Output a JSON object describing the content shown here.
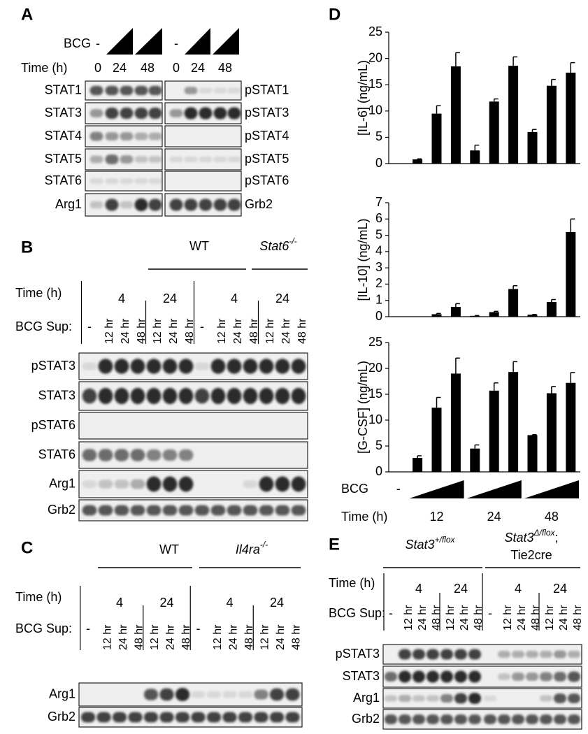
{
  "panel_a": {
    "letter": "A",
    "bcg_label": "BCG",
    "bcg_control": [
      "-",
      "-"
    ],
    "time_label": "Time (h)",
    "times": [
      "0",
      "24",
      "48",
      "0",
      "24",
      "48"
    ],
    "left_blots": [
      "STAT1",
      "STAT3",
      "STAT4",
      "STAT5",
      "STAT6",
      "Arg1"
    ],
    "right_blots": [
      "pSTAT1",
      "pSTAT3",
      "pSTAT4",
      "pSTAT5",
      "pSTAT6",
      "Grb2"
    ]
  },
  "panel_b": {
    "letter": "B",
    "groups": [
      {
        "name": "WT"
      },
      {
        "name": "Stat6",
        "sup": "-/-"
      }
    ],
    "time_label": "Time (h)",
    "times": [
      "4",
      "24",
      "4",
      "24"
    ],
    "sup_label": "BCG Sup:",
    "lanes": [
      "-",
      "12 hr",
      "24 hr",
      "48 hr",
      "12 hr",
      "24 hr",
      "48 hr",
      "-",
      "12 hr",
      "24 hr",
      "48 hr",
      "12 hr",
      "24 hr",
      "48 hr"
    ],
    "blots": [
      "pSTAT3",
      "STAT3",
      "pSTAT6",
      "STAT6",
      "Arg1",
      "Grb2"
    ]
  },
  "panel_c": {
    "letter": "C",
    "groups": [
      {
        "name": "WT"
      },
      {
        "name": "Il4ra",
        "sup": "-/-"
      }
    ],
    "time_label": "Time (h)",
    "times": [
      "4",
      "24",
      "4",
      "24"
    ],
    "sup_label": "BCG Sup:",
    "lanes": [
      "-",
      "12 hr",
      "24 hr",
      "48 hr",
      "12 hr",
      "24 hr",
      "48 hr",
      "-",
      "12 hr",
      "24 hr",
      "48 hr",
      "12 hr",
      "24 hr",
      "48 hr"
    ],
    "blots": [
      "Arg1",
      "Grb2"
    ]
  },
  "panel_d": {
    "letter": "D",
    "bcg_label": "BCG",
    "bcg_control": "-",
    "time_label": "Time (h)",
    "times": [
      "12",
      "24",
      "48"
    ]
  },
  "panel_e": {
    "letter": "E",
    "groups": [
      {
        "name": "Stat3",
        "sup": "+/flox"
      },
      {
        "name": "Stat3",
        "sup": "Δ/flox",
        "suffix": ";",
        "line2": "Tie2cre"
      }
    ],
    "time_label": "Time (h)",
    "times": [
      "4",
      "24",
      "4",
      "24"
    ],
    "sup_label": "BCG Sup:",
    "lanes": [
      "-",
      "12 hr",
      "24 hr",
      "48 hr",
      "12 hr",
      "24 hr",
      "48 hr",
      "-",
      "12 hr",
      "24 hr",
      "48 hr",
      "12 hr",
      "24 hr",
      "48 hr"
    ],
    "blots": [
      "pSTAT3",
      "STAT3",
      "Arg1",
      "Grb2"
    ]
  },
  "chart_data": [
    {
      "type": "bar",
      "ylabel": "[IL-6] (ng/mL)",
      "color": "#000000",
      "ylim": [
        0,
        25
      ],
      "yticks": [
        0,
        5,
        10,
        15,
        20,
        25
      ],
      "values": [
        0,
        0.8,
        9.5,
        18.5,
        2.5,
        11.8,
        18.6,
        6.0,
        14.8,
        17.3
      ],
      "errors": [
        0,
        0.1,
        1.5,
        2.6,
        1.0,
        0.5,
        1.7,
        0.5,
        1.2,
        1.9
      ]
    },
    {
      "type": "bar",
      "ylabel": "[IL-10] (ng/mL)",
      "color": "#000000",
      "ylim": [
        0,
        7
      ],
      "yticks": [
        0,
        1,
        2,
        3,
        4,
        5,
        6,
        7
      ],
      "values": [
        0,
        0.02,
        0.15,
        0.6,
        0.05,
        0.28,
        1.7,
        0.12,
        0.9,
        5.2
      ],
      "errors": [
        0,
        0,
        0.05,
        0.2,
        0.02,
        0.05,
        0.2,
        0.02,
        0.15,
        0.8
      ]
    },
    {
      "type": "bar",
      "ylabel": "[G-CSF] (ng/mL)",
      "color": "#000000",
      "ylim": [
        0,
        25
      ],
      "yticks": [
        0,
        5,
        10,
        15,
        20,
        25
      ],
      "values": [
        0,
        2.7,
        12.4,
        19.0,
        4.5,
        15.7,
        19.3,
        7.1,
        15.2,
        17.2
      ],
      "errors": [
        0,
        0.4,
        2.0,
        3.0,
        0.7,
        1.5,
        2.0,
        0.1,
        1.3,
        2.0
      ]
    }
  ]
}
